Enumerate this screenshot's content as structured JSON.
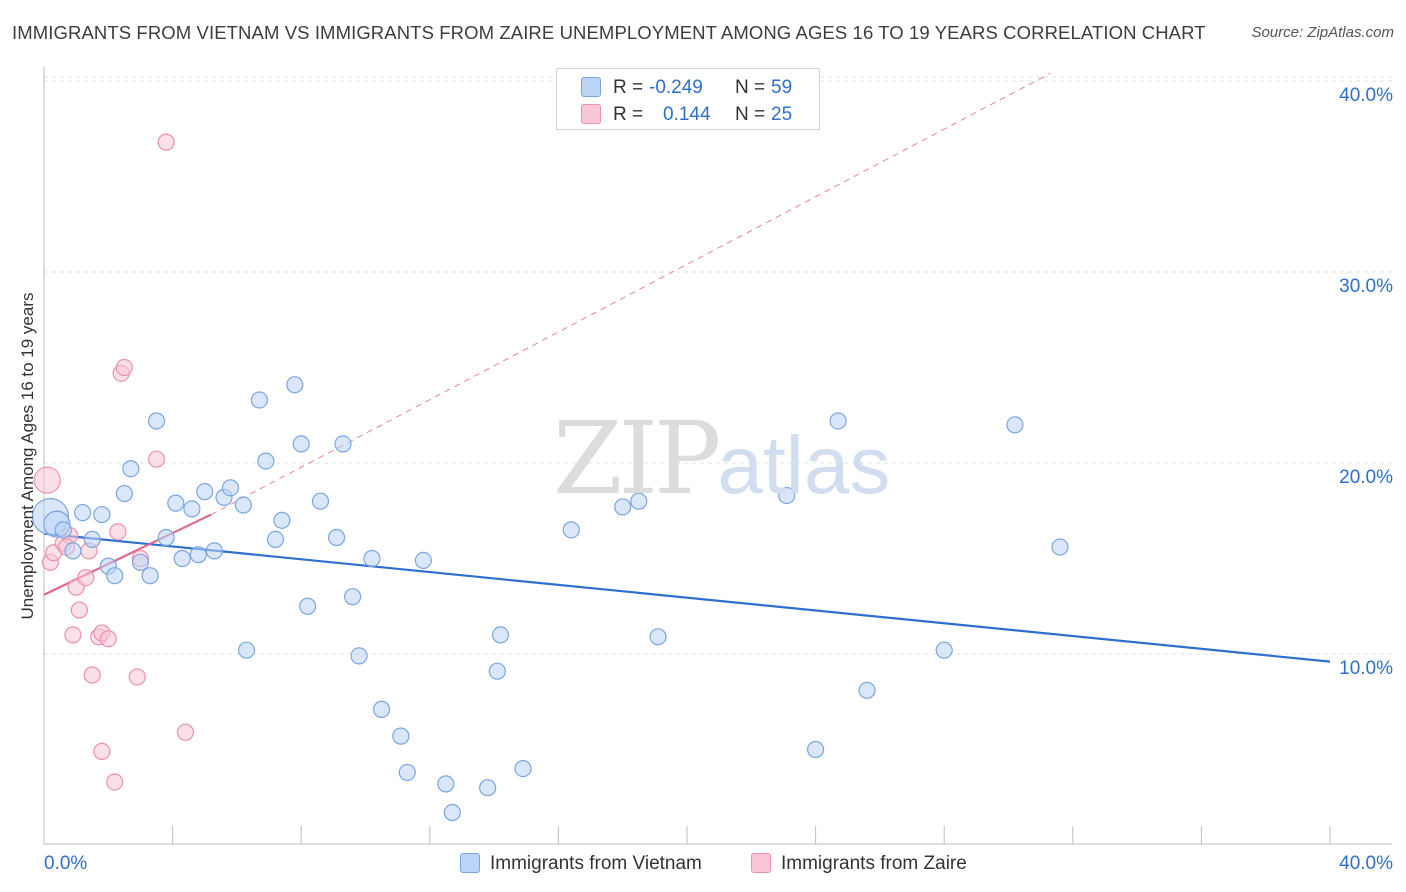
{
  "title": "IMMIGRANTS FROM VIETNAM VS IMMIGRANTS FROM ZAIRE UNEMPLOYMENT AMONG AGES 16 TO 19 YEARS CORRELATION CHART",
  "source": "Source: ZipAtlas.com",
  "watermark": {
    "zip": "ZIP",
    "atlas": "atlas"
  },
  "legend": {
    "rows": [
      {
        "r_label": "R =",
        "r_value": "-0.249",
        "n_label": "N =",
        "n_value": "59"
      },
      {
        "r_label": "R =",
        "r_value": "0.144",
        "n_label": "N =",
        "n_value": "25"
      }
    ]
  },
  "colors": {
    "vietnam_fill": "#bcd4f5",
    "vietnam_stroke": "#7aa6e0",
    "vietnam_line": "#2f6fd0",
    "zaire_fill": "#f9c6d6",
    "zaire_stroke": "#ec91ad",
    "zaire_line": "#e0678f",
    "axis_text": "#2f6fca",
    "grid": "#e0e0e0"
  },
  "chart_data": {
    "type": "scatter",
    "xlabel": "",
    "ylabel": "Unemployment Among Ages 16 to 19 years",
    "xlim": [
      0,
      40
    ],
    "ylim": [
      0,
      40
    ],
    "x_tick_labels": [
      "0.0%",
      "40.0%"
    ],
    "y_ticks": [
      10,
      20,
      30,
      40
    ],
    "y_tick_labels": [
      "10.0%",
      "20.0%",
      "30.0%",
      "40.0%"
    ],
    "series": [
      {
        "name": "Immigrants from Vietnam",
        "r": -0.249,
        "n": 59,
        "points": [
          {
            "x": 0.2,
            "y": 17.2,
            "s": "lg"
          },
          {
            "x": 0.4,
            "y": 16.8,
            "s": "md"
          },
          {
            "x": 0.6,
            "y": 16.5
          },
          {
            "x": 0.9,
            "y": 15.4
          },
          {
            "x": 1.2,
            "y": 17.4
          },
          {
            "x": 1.5,
            "y": 16.0
          },
          {
            "x": 1.8,
            "y": 17.3
          },
          {
            "x": 2.0,
            "y": 14.6
          },
          {
            "x": 2.2,
            "y": 14.1
          },
          {
            "x": 2.5,
            "y": 18.4
          },
          {
            "x": 2.7,
            "y": 19.7
          },
          {
            "x": 3.0,
            "y": 14.8
          },
          {
            "x": 3.3,
            "y": 14.1
          },
          {
            "x": 3.5,
            "y": 22.2
          },
          {
            "x": 3.8,
            "y": 16.1
          },
          {
            "x": 4.1,
            "y": 17.9
          },
          {
            "x": 4.3,
            "y": 15.0
          },
          {
            "x": 4.6,
            "y": 17.6
          },
          {
            "x": 4.8,
            "y": 15.2
          },
          {
            "x": 5.0,
            "y": 18.5
          },
          {
            "x": 5.3,
            "y": 15.4
          },
          {
            "x": 5.6,
            "y": 18.2
          },
          {
            "x": 5.8,
            "y": 18.7
          },
          {
            "x": 6.2,
            "y": 17.8
          },
          {
            "x": 6.3,
            "y": 10.2
          },
          {
            "x": 6.7,
            "y": 23.3
          },
          {
            "x": 6.9,
            "y": 20.1
          },
          {
            "x": 7.2,
            "y": 16.0
          },
          {
            "x": 7.4,
            "y": 17.0
          },
          {
            "x": 7.8,
            "y": 24.1
          },
          {
            "x": 8.0,
            "y": 21.0
          },
          {
            "x": 8.2,
            "y": 12.5
          },
          {
            "x": 8.6,
            "y": 18.0
          },
          {
            "x": 9.1,
            "y": 16.1
          },
          {
            "x": 9.3,
            "y": 21.0
          },
          {
            "x": 9.6,
            "y": 13.0
          },
          {
            "x": 9.8,
            "y": 9.9
          },
          {
            "x": 10.2,
            "y": 15.0
          },
          {
            "x": 10.5,
            "y": 7.1
          },
          {
            "x": 11.1,
            "y": 5.7
          },
          {
            "x": 11.3,
            "y": 3.8
          },
          {
            "x": 11.8,
            "y": 14.9
          },
          {
            "x": 12.5,
            "y": 3.2
          },
          {
            "x": 12.7,
            "y": 1.7
          },
          {
            "x": 13.8,
            "y": 3.0
          },
          {
            "x": 14.1,
            "y": 9.1
          },
          {
            "x": 14.2,
            "y": 11.0
          },
          {
            "x": 14.9,
            "y": 4.0
          },
          {
            "x": 16.4,
            "y": 16.5
          },
          {
            "x": 18.0,
            "y": 17.7
          },
          {
            "x": 18.5,
            "y": 18.0
          },
          {
            "x": 19.1,
            "y": 10.9
          },
          {
            "x": 23.1,
            "y": 18.3
          },
          {
            "x": 24.0,
            "y": 5.0
          },
          {
            "x": 24.7,
            "y": 22.2
          },
          {
            "x": 25.6,
            "y": 8.1
          },
          {
            "x": 28.0,
            "y": 10.2
          },
          {
            "x": 30.2,
            "y": 22.0
          },
          {
            "x": 31.6,
            "y": 15.6
          }
        ]
      },
      {
        "name": "Immigrants from Zaire",
        "r": 0.144,
        "n": 25,
        "points": [
          {
            "x": 0.1,
            "y": 19.1,
            "s": "md"
          },
          {
            "x": 0.2,
            "y": 14.8
          },
          {
            "x": 0.3,
            "y": 15.3
          },
          {
            "x": 0.6,
            "y": 15.8
          },
          {
            "x": 0.8,
            "y": 16.2
          },
          {
            "x": 0.9,
            "y": 11.0
          },
          {
            "x": 1.0,
            "y": 13.5
          },
          {
            "x": 1.1,
            "y": 12.3
          },
          {
            "x": 1.3,
            "y": 14.0
          },
          {
            "x": 1.4,
            "y": 15.4
          },
          {
            "x": 1.5,
            "y": 8.9
          },
          {
            "x": 1.7,
            "y": 10.9
          },
          {
            "x": 1.8,
            "y": 11.1
          },
          {
            "x": 1.8,
            "y": 4.9
          },
          {
            "x": 2.0,
            "y": 10.8
          },
          {
            "x": 2.2,
            "y": 3.3
          },
          {
            "x": 2.3,
            "y": 16.4
          },
          {
            "x": 2.4,
            "y": 24.7
          },
          {
            "x": 2.5,
            "y": 25.0
          },
          {
            "x": 2.9,
            "y": 8.8
          },
          {
            "x": 3.0,
            "y": 15.0
          },
          {
            "x": 3.5,
            "y": 20.2
          },
          {
            "x": 3.8,
            "y": 36.8
          },
          {
            "x": 4.4,
            "y": 5.9
          },
          {
            "x": 0.7,
            "y": 15.6
          }
        ]
      }
    ],
    "trend_lines": [
      {
        "series": "Immigrants from Vietnam",
        "style": "solid",
        "x": [
          0,
          40
        ],
        "y": [
          16.3,
          9.6
        ]
      },
      {
        "series": "Immigrants from Zaire",
        "style": "solid",
        "x": [
          0,
          5.2
        ],
        "y": [
          13.1,
          17.3
        ]
      },
      {
        "series": "Immigrants from Zaire",
        "style": "dashed",
        "x": [
          5.2,
          31.3
        ],
        "y": [
          17.3,
          40.4
        ]
      }
    ]
  }
}
